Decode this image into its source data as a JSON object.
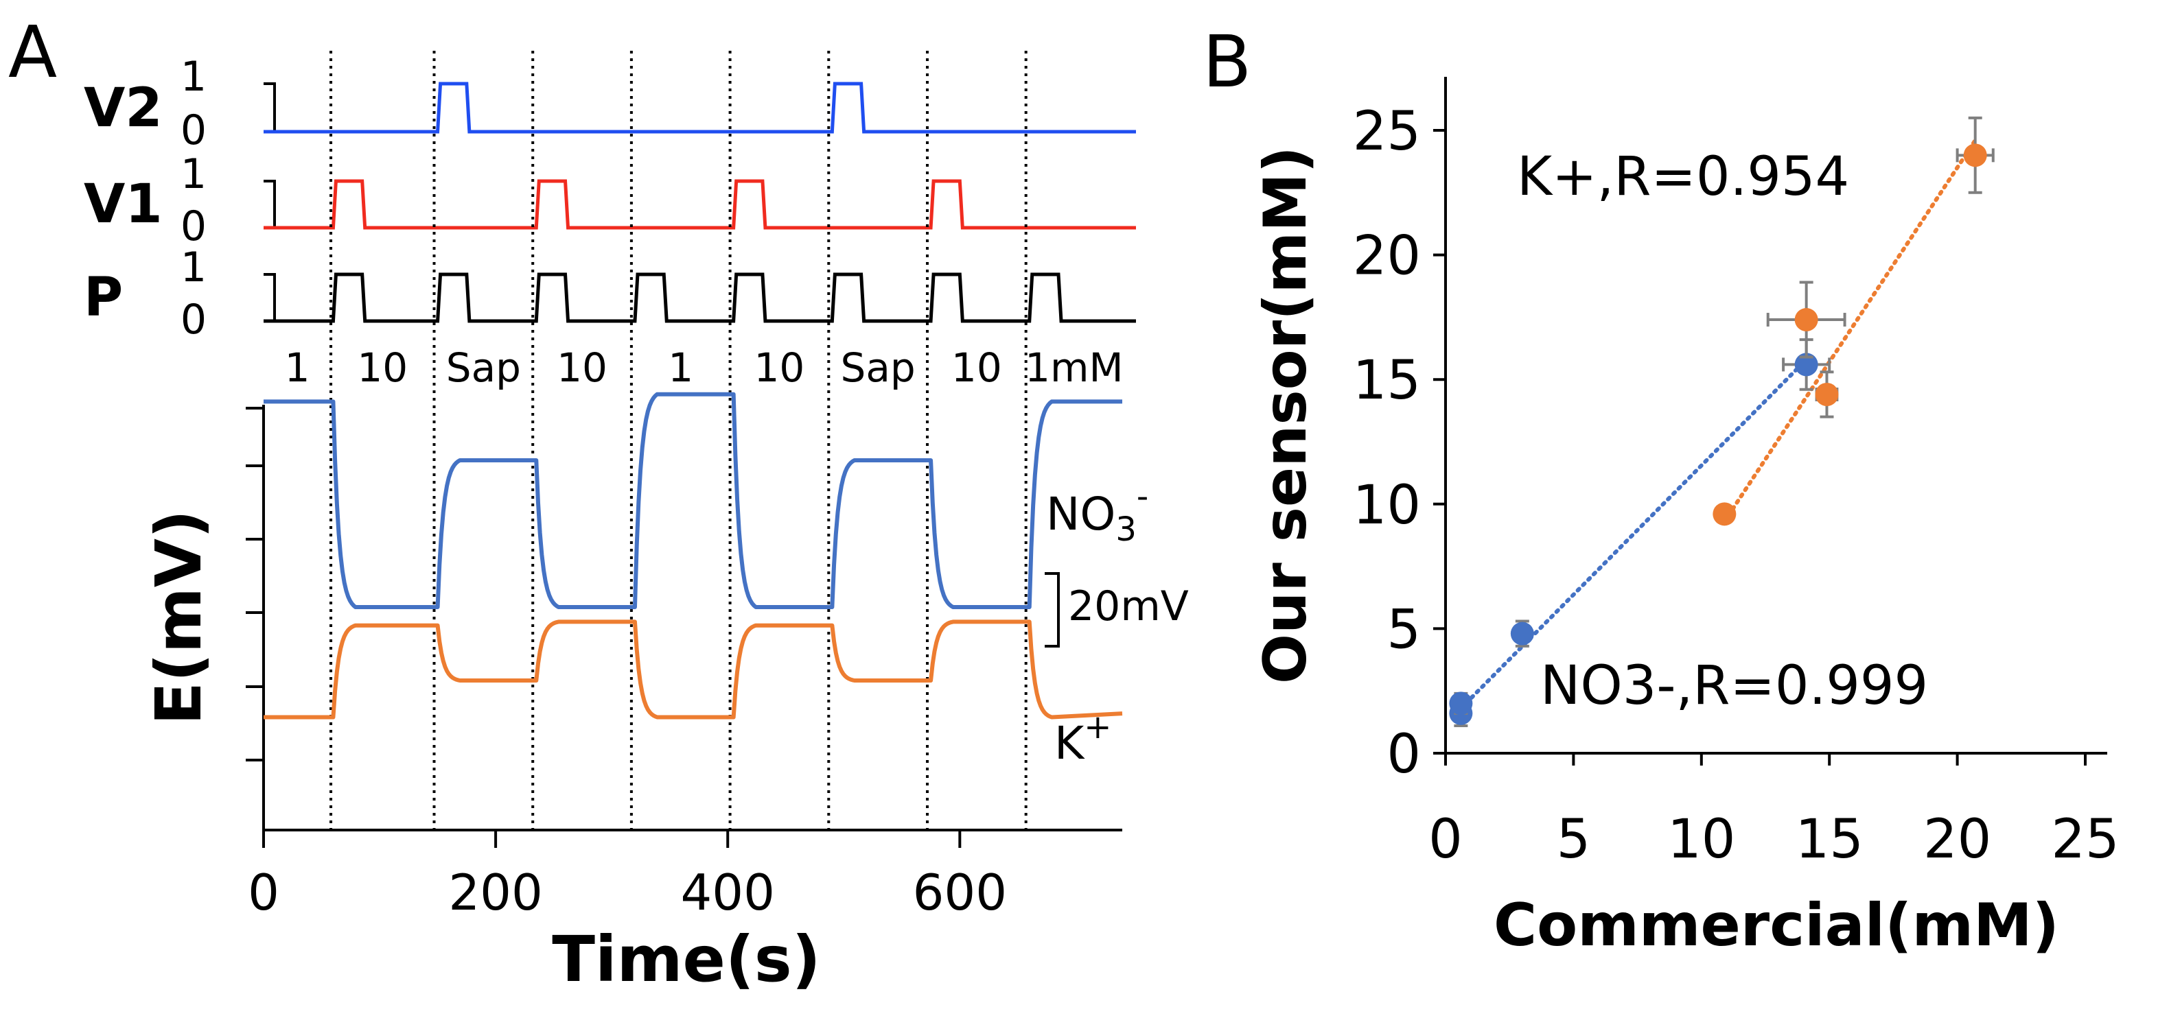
{
  "chart_data": [
    {
      "panel_label": "A",
      "type": "line",
      "title": "",
      "xlabel": "Time(s)",
      "ylabel": "E(mV)",
      "xlim": [
        0,
        740
      ],
      "x_ticks": [
        "0",
        "200",
        "400",
        "600"
      ],
      "valves": {
        "tick_hi": "1",
        "tick_lo": "0",
        "channels": [
          {
            "name": "V2",
            "color": "#1f4ef0",
            "pulses": [
              [
                150,
                175
              ],
              [
                490,
                515
              ]
            ]
          },
          {
            "name": "V1",
            "color": "#f02b1f",
            "pulses": [
              [
                60,
                85
              ],
              [
                235,
                260
              ],
              [
                405,
                430
              ],
              [
                575,
                600
              ]
            ]
          },
          {
            "name": "P",
            "color": "#000000",
            "pulses": [
              [
                60,
                85
              ],
              [
                150,
                175
              ],
              [
                235,
                260
              ],
              [
                320,
                345
              ],
              [
                405,
                430
              ],
              [
                490,
                515
              ],
              [
                575,
                600
              ],
              [
                660,
                685
              ]
            ]
          }
        ]
      },
      "switch_times": [
        58,
        147,
        232,
        317,
        402,
        487,
        572,
        657
      ],
      "segment_labels": [
        "1",
        "10",
        "Sap",
        "10",
        "1",
        "10",
        "Sap",
        "10",
        "1mM"
      ],
      "scale_bar": "20mV",
      "series": [
        {
          "name": "NO3-",
          "label_main": "NO",
          "label_sub": "3",
          "label_sup": "-",
          "color": "#4472c4",
          "segments": [
            [
              0,
              56
            ],
            [
              60,
              0
            ],
            [
              150,
              40
            ],
            [
              235,
              0
            ],
            [
              320,
              58
            ],
            [
              405,
              0
            ],
            [
              490,
              40
            ],
            [
              575,
              0
            ],
            [
              660,
              56
            ],
            [
              740,
              56
            ]
          ]
        },
        {
          "name": "K+",
          "label_main": "K",
          "label_sup": "+",
          "color": "#ed7d31",
          "segments": [
            [
              0,
              -30
            ],
            [
              60,
              -5
            ],
            [
              150,
              -20
            ],
            [
              235,
              -4
            ],
            [
              320,
              -30
            ],
            [
              405,
              -5
            ],
            [
              490,
              -20
            ],
            [
              575,
              -4
            ],
            [
              660,
              -30
            ],
            [
              740,
              -29
            ]
          ]
        }
      ]
    },
    {
      "panel_label": "B",
      "type": "scatter",
      "title": "",
      "xlabel": "Commercial(mM)",
      "ylabel": "Our sensor(mM)",
      "xlim": [
        0,
        25
      ],
      "ylim": [
        0,
        25
      ],
      "x_ticks": [
        "0",
        "5",
        "10",
        "15",
        "20",
        "25"
      ],
      "y_ticks": [
        "0",
        "5",
        "10",
        "15",
        "20",
        "25"
      ],
      "series": [
        {
          "name": "NO3-",
          "annotation": "NO3-,R=0.999",
          "color": "#4472c4",
          "points": [
            {
              "x": 0.6,
              "y": 1.6,
              "xerr": 0.3,
              "yerr": 0.5
            },
            {
              "x": 0.6,
              "y": 2.0,
              "xerr": 0.3,
              "yerr": 0.4
            },
            {
              "x": 3.0,
              "y": 4.8,
              "xerr": 0.2,
              "yerr": 0.5
            },
            {
              "x": 14.1,
              "y": 15.6,
              "xerr": 0.9,
              "yerr": 1.0
            }
          ],
          "trendline": [
            [
              0.6,
              1.8
            ],
            [
              14.1,
              15.8
            ]
          ]
        },
        {
          "name": "K+",
          "annotation": "K+,R=0.954",
          "color": "#ed7d31",
          "points": [
            {
              "x": 10.9,
              "y": 9.6,
              "xerr": 0.2,
              "yerr": 0.3
            },
            {
              "x": 14.1,
              "y": 17.4,
              "xerr": 1.5,
              "yerr": 1.5
            },
            {
              "x": 14.9,
              "y": 14.4,
              "xerr": 0.4,
              "yerr": 0.9
            },
            {
              "x": 20.7,
              "y": 24.0,
              "xerr": 0.7,
              "yerr": 1.5
            }
          ],
          "trendline": [
            [
              10.9,
              9.3
            ],
            [
              20.7,
              24.6
            ]
          ]
        }
      ]
    }
  ]
}
